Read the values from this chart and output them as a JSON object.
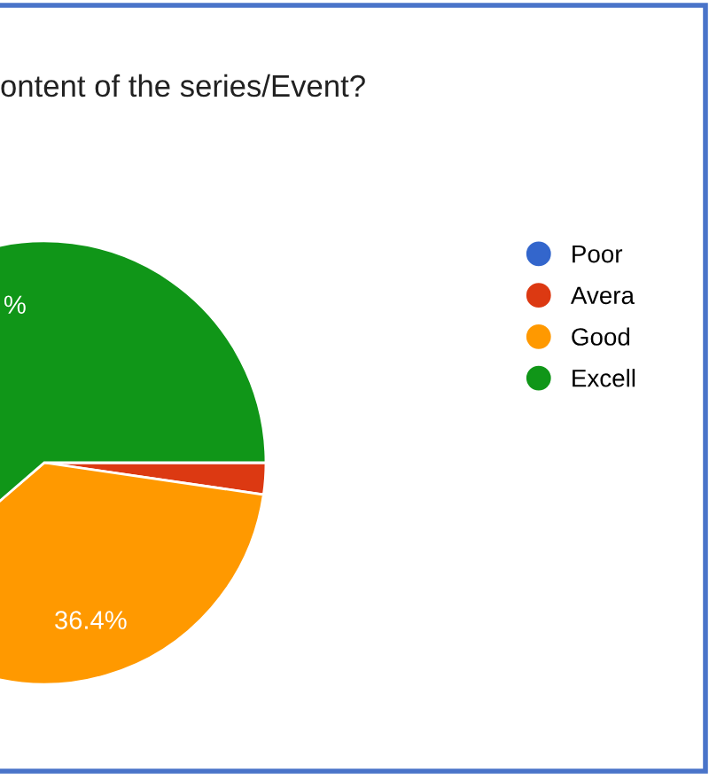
{
  "chart_data": {
    "type": "pie",
    "title": "ontent of the series/Event?",
    "categories": [
      "Poor",
      "Avera",
      "Good",
      "Excell"
    ],
    "values": [
      0,
      2.3,
      36.4,
      61.3
    ],
    "colors": [
      "#3366cc",
      "#dc3912",
      "#ff9900",
      "#109618"
    ],
    "value_labels": [
      null,
      null,
      "36.4%",
      "%"
    ],
    "legend": "right"
  }
}
